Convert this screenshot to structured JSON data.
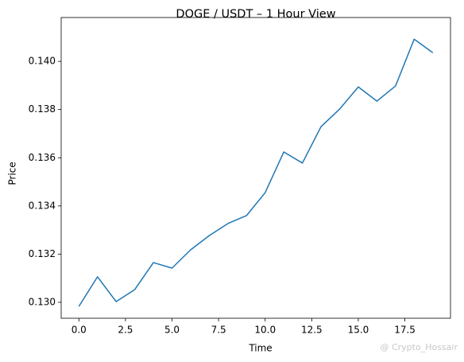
{
  "chart_data": {
    "type": "line",
    "title": "DOGE / USDT – 1 Hour View",
    "x_label": "Time",
    "y_label": "Price",
    "watermark": "@ Crypto_Hossair",
    "x": [
      0,
      1,
      2,
      3,
      4,
      5,
      6,
      7,
      8,
      9,
      10,
      11,
      12,
      13,
      14,
      15,
      16,
      17,
      18,
      19
    ],
    "series": [
      {
        "name": "DOGE/USDT",
        "color": "#1f77b4",
        "values": [
          0.12983,
          0.13106,
          0.13003,
          0.13053,
          0.13165,
          0.13142,
          0.13218,
          0.13277,
          0.13327,
          0.1336,
          0.13455,
          0.13624,
          0.13578,
          0.13729,
          0.13802,
          0.13894,
          0.13835,
          0.13898,
          0.14092,
          0.14036
        ]
      }
    ],
    "xlim": [
      -0.95,
      19.95
    ],
    "xticks": [
      {
        "value": 0,
        "label": "0.0"
      },
      2.5,
      {
        "value": 5,
        "label": "5.0"
      },
      7.5,
      {
        "value": 10,
        "label": "10.0"
      },
      12.5,
      {
        "value": 15,
        "label": "15.0"
      },
      17.5
    ],
    "ylim": [
      0.12934,
      0.14182
    ],
    "yticks": [
      {
        "value": 0.13,
        "label": "0.130"
      },
      {
        "value": 0.132,
        "label": "0.132"
      },
      {
        "value": 0.134,
        "label": "0.134"
      },
      {
        "value": 0.136,
        "label": "0.136"
      },
      {
        "value": 0.138,
        "label": "0.138"
      },
      {
        "value": 0.14,
        "label": "0.140"
      }
    ],
    "grid": false
  }
}
